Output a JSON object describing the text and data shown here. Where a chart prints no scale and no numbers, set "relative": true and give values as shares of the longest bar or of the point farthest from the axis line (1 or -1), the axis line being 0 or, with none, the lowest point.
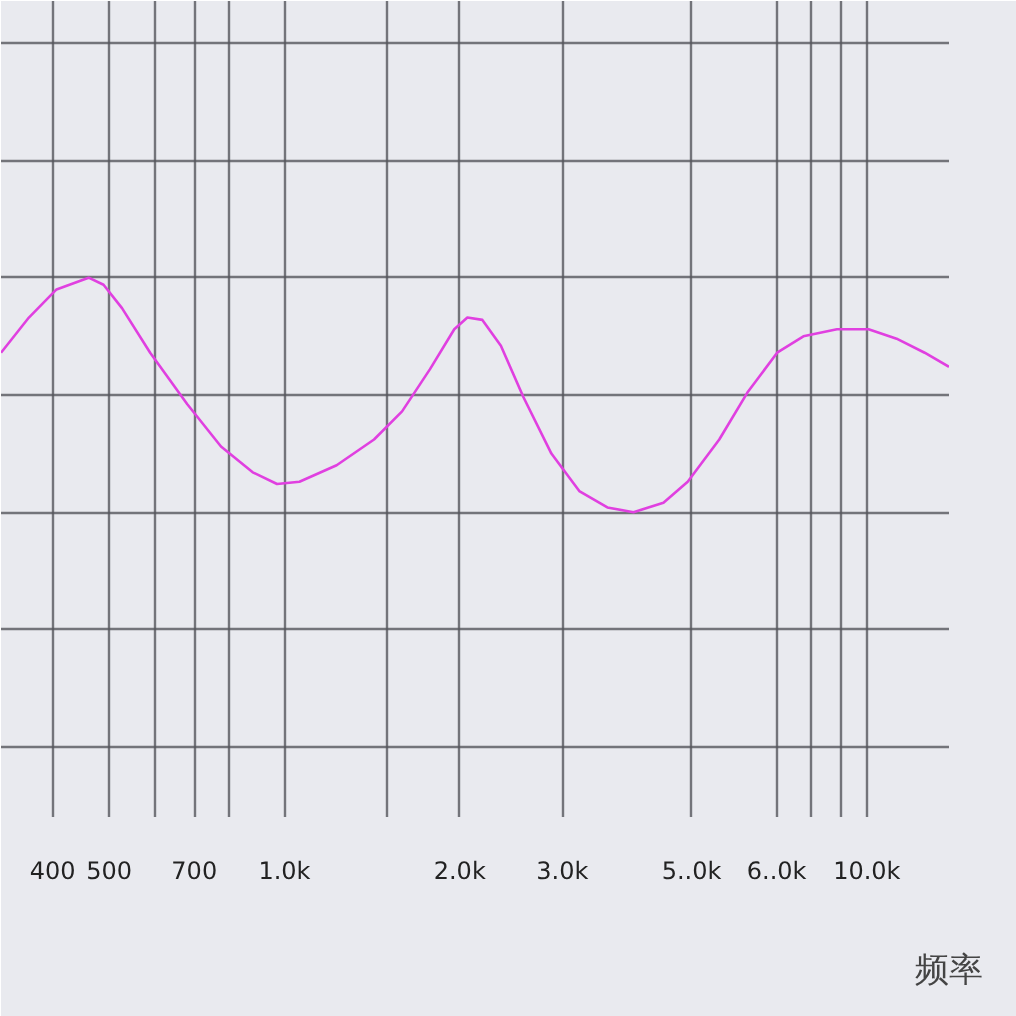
{
  "chart_data": {
    "type": "line",
    "xlabel": "频率",
    "relative": true,
    "log": "x",
    "grid": true,
    "tick_labels": "x",
    "xlim": [
      326,
      13840
    ],
    "xticks": [
      400,
      500,
      {
        "value": 600,
        "label": null
      },
      700,
      {
        "value": 800,
        "label": null
      },
      {
        "value": 1000,
        "label": "1.0k"
      },
      {
        "value": 1500,
        "label": null
      },
      {
        "value": 2000,
        "label": "2.0k"
      },
      {
        "value": 3000,
        "label": "3.0k"
      },
      {
        "value": 5000,
        "label": "5..0k"
      },
      {
        "value": 7000,
        "label": "6..0k"
      },
      {
        "value": 8000,
        "label": null
      },
      {
        "value": 9000,
        "label": null
      },
      {
        "value": 10000,
        "label": "10.0k"
      }
    ],
    "series": [
      {
        "color": "#e040e0",
        "x": [
          326,
          364,
          406,
          461,
          489,
          526,
          588,
          681,
          778,
          882,
          971,
          1061,
          1229,
          1425,
          1592,
          1778,
          1957,
          2061,
          2187,
          2353,
          2573,
          2873,
          3208,
          3585,
          3975,
          4475,
          4925,
          5580,
          6236,
          7015,
          7782,
          8886,
          10070,
          11250,
          12570,
          13840
        ],
        "values": [
          0.68,
          0.83,
          0.95,
          1,
          0.97,
          0.87,
          0.68,
          0.46,
          0.28,
          0.17,
          0.12,
          0.13,
          0.2,
          0.31,
          0.43,
          0.61,
          0.78,
          0.83,
          0.82,
          0.71,
          0.49,
          0.25,
          0.09,
          0.02,
          0,
          0.04,
          0.13,
          0.31,
          0.51,
          0.68,
          0.75,
          0.78,
          0.78,
          0.74,
          0.68,
          0.62
        ]
      }
    ]
  }
}
